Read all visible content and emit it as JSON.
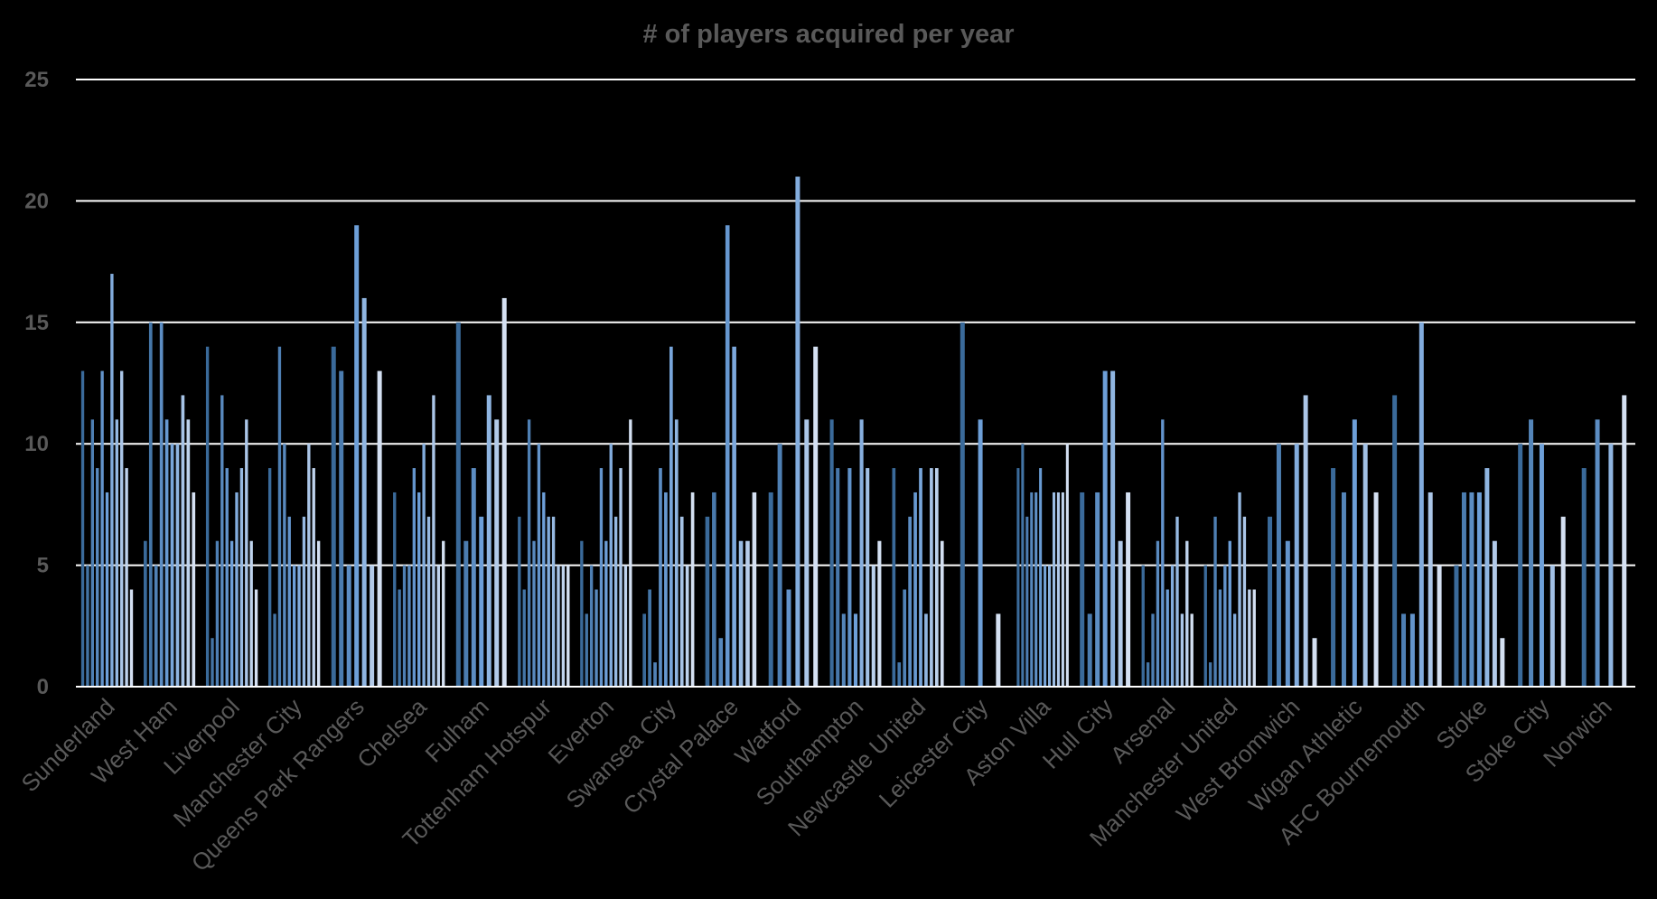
{
  "chart_data": {
    "type": "bar",
    "title": "# of players acquired per year",
    "xlabel": "",
    "ylabel": "",
    "ylim": [
      0,
      25
    ],
    "yticks": [
      0,
      5,
      10,
      15,
      20,
      25
    ],
    "grid": true,
    "colors": {
      "background": "#000000",
      "text": "#595959",
      "gridline": "#ffffff",
      "bar_dark": "#3a6a9a",
      "bar_mid": "#6d9fd8",
      "bar_light": "#d4e0f2"
    },
    "groups": [
      {
        "team": "Sunderland",
        "values": [
          13,
          5,
          11,
          9,
          13,
          8,
          17,
          11,
          13,
          9,
          4
        ]
      },
      {
        "team": "West Ham",
        "values": [
          6,
          15,
          5,
          15,
          11,
          10,
          10,
          12,
          11,
          8
        ]
      },
      {
        "team": "Liverpool",
        "values": [
          14,
          2,
          6,
          12,
          9,
          6,
          8,
          9,
          11,
          6,
          4
        ]
      },
      {
        "team": "Manchester City",
        "values": [
          9,
          3,
          14,
          10,
          7,
          5,
          5,
          7,
          10,
          9,
          6
        ]
      },
      {
        "team": "Queens Park Rangers",
        "values": [
          14,
          13,
          5,
          19,
          16,
          5,
          13
        ]
      },
      {
        "team": "Chelsea",
        "values": [
          8,
          4,
          5,
          5,
          9,
          8,
          10,
          7,
          12,
          5,
          6
        ]
      },
      {
        "team": "Fulham",
        "values": [
          15,
          6,
          9,
          7,
          12,
          11,
          16
        ]
      },
      {
        "team": "Tottenham Hotspur",
        "values": [
          7,
          4,
          11,
          6,
          10,
          8,
          7,
          7,
          5,
          5,
          5
        ]
      },
      {
        "team": "Everton",
        "values": [
          6,
          3,
          5,
          4,
          9,
          6,
          10,
          7,
          9,
          5,
          11
        ]
      },
      {
        "team": "Swansea City",
        "values": [
          3,
          4,
          1,
          9,
          8,
          14,
          11,
          7,
          5,
          8
        ]
      },
      {
        "team": "Crystal Palace",
        "values": [
          7,
          8,
          2,
          19,
          14,
          6,
          6,
          8
        ]
      },
      {
        "team": "Watford",
        "values": [
          8,
          10,
          4,
          21,
          11,
          14
        ]
      },
      {
        "team": "Southampton",
        "values": [
          11,
          9,
          3,
          9,
          3,
          11,
          9,
          5,
          6
        ]
      },
      {
        "team": "Newcastle United",
        "values": [
          9,
          1,
          4,
          7,
          8,
          9,
          3,
          9,
          9,
          6
        ]
      },
      {
        "team": "Leicester City",
        "values": [
          15,
          11,
          3
        ]
      },
      {
        "team": "Aston Villa",
        "values": [
          9,
          10,
          7,
          8,
          8,
          9,
          5,
          5,
          8,
          8,
          8,
          10
        ]
      },
      {
        "team": "Hull City",
        "values": [
          8,
          3,
          8,
          13,
          13,
          6,
          8
        ]
      },
      {
        "team": "Arsenal",
        "values": [
          5,
          1,
          3,
          6,
          11,
          4,
          5,
          7,
          3,
          6,
          3
        ]
      },
      {
        "team": "Manchester United",
        "values": [
          5,
          1,
          7,
          4,
          5,
          6,
          3,
          8,
          7,
          4,
          4
        ]
      },
      {
        "team": "West Bromwich",
        "values": [
          7,
          10,
          6,
          10,
          12,
          2
        ]
      },
      {
        "team": "Wigan Athletic",
        "values": [
          9,
          8,
          11,
          10,
          8
        ]
      },
      {
        "team": "AFC Bournemouth",
        "values": [
          12,
          3,
          3,
          15,
          8,
          5
        ]
      },
      {
        "team": "Stoke",
        "values": [
          5,
          8,
          8,
          8,
          9,
          6,
          2
        ]
      },
      {
        "team": "Stoke City",
        "values": [
          10,
          11,
          10,
          5,
          7
        ]
      },
      {
        "team": "Norwich",
        "values": [
          9,
          11,
          10,
          12
        ]
      }
    ]
  }
}
